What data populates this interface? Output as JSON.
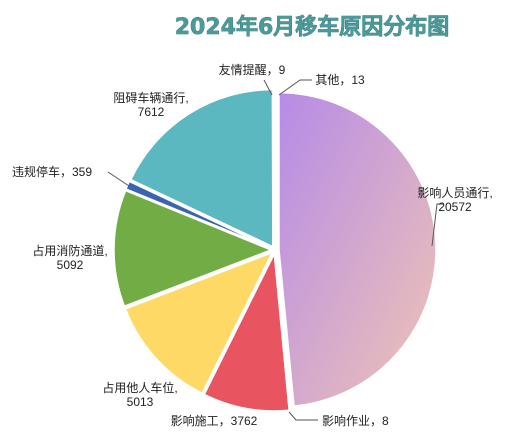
{
  "chart_data": {
    "type": "pie",
    "title": "2024年6月移车原因分布图",
    "slices": [
      {
        "category": "影响人员通行",
        "value": 20572,
        "label_value": "20572",
        "color_from": "#b58be8",
        "color_to": "#f0c4b4"
      },
      {
        "category": "影响作业",
        "value": 8,
        "label_value": "8",
        "color_from": "#e0e0e0",
        "color_to": "#e0e0e0"
      },
      {
        "category": "影响施工",
        "value": 3762,
        "label_value": "3762",
        "color_from": "#e85460",
        "color_to": "#e85460"
      },
      {
        "category": "占用他人车位",
        "value": 5013,
        "label_value": "5013",
        "color_from": "#ffd966",
        "color_to": "#ffd966"
      },
      {
        "category": "占用消防通道",
        "value": 5092,
        "label_value": "5092",
        "color_from": "#72ac45",
        "color_to": "#72ac45"
      },
      {
        "category": "违规停车",
        "value": 359,
        "label_value": "359",
        "color_from": "#3a64b0",
        "color_to": "#3a64b0"
      },
      {
        "category": "阻碍车辆通行",
        "value": 7612,
        "label_value": "7612",
        "color_from": "#5cb8c0",
        "color_to": "#5cb8c0"
      },
      {
        "category": "友情提醒",
        "value": 9,
        "label_value": "9",
        "color_from": "#d0d0d0",
        "color_to": "#d0d0d0"
      },
      {
        "category": "其他",
        "value": 13,
        "label_value": "13",
        "color_from": "#c8c8c8",
        "color_to": "#c8c8c8"
      }
    ]
  }
}
